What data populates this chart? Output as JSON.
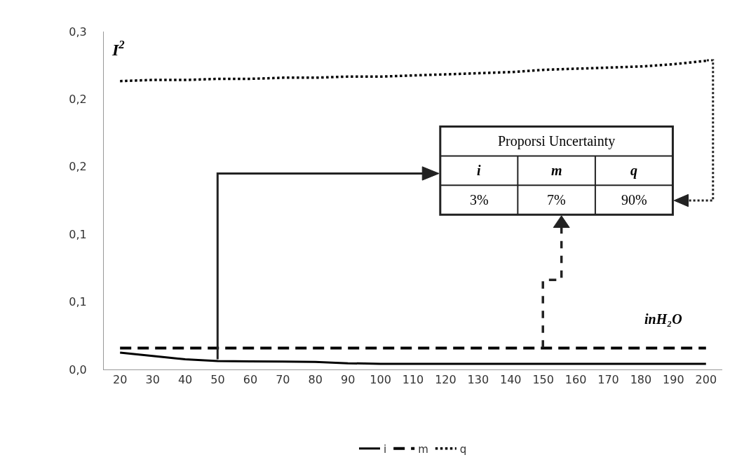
{
  "chart_data": {
    "type": "line",
    "ylabel": "I$^{2}$",
    "categories": [
      "20",
      "30",
      "40",
      "50",
      "60",
      "70",
      "80",
      "90",
      "100",
      "110",
      "120",
      "130",
      "140",
      "150",
      "160",
      "170",
      "180",
      "190",
      "200"
    ],
    "series": [
      {
        "name": "i",
        "color": "#000000",
        "line_style": "solid",
        "values": [
          0.015,
          0.012,
          0.009,
          0.0074,
          0.0072,
          0.007,
          0.0067,
          0.0055,
          0.005,
          0.005,
          0.005,
          0.005,
          0.005,
          0.005,
          0.005,
          0.005,
          0.005,
          0.005,
          0.005
        ]
      },
      {
        "name": "m",
        "color": "#000000",
        "line_style": "dashed",
        "values": [
          0.019,
          0.019,
          0.019,
          0.019,
          0.019,
          0.019,
          0.019,
          0.019,
          0.019,
          0.019,
          0.019,
          0.019,
          0.019,
          0.019,
          0.019,
          0.019,
          0.019,
          0.019,
          0.019
        ]
      },
      {
        "name": "q",
        "color": "#000000",
        "line_style": "dotted",
        "values": [
          0.256,
          0.257,
          0.257,
          0.258,
          0.258,
          0.259,
          0.259,
          0.26,
          0.26,
          0.261,
          0.262,
          0.263,
          0.264,
          0.266,
          0.267,
          0.268,
          0.269,
          0.271,
          0.274
        ]
      }
    ],
    "ylim": [
      0,
      0.3
    ],
    "yticks": [
      {
        "value": 0,
        "label": "0,0"
      },
      {
        "value": 0.06,
        "label": "0,1"
      },
      {
        "value": 0.12,
        "label": "0,1"
      },
      {
        "value": 0.18,
        "label": "0,2"
      },
      {
        "value": 0.24,
        "label": "0,2"
      },
      {
        "value": 0.3,
        "label": "0,3"
      }
    ],
    "annotations": [
      "Proporsi Uncertainty",
      "i",
      "m",
      "q",
      "3%",
      "7%",
      "90%",
      "inH₂O"
    ],
    "legend": "bottom",
    "grid": false,
    "marker": "none"
  }
}
